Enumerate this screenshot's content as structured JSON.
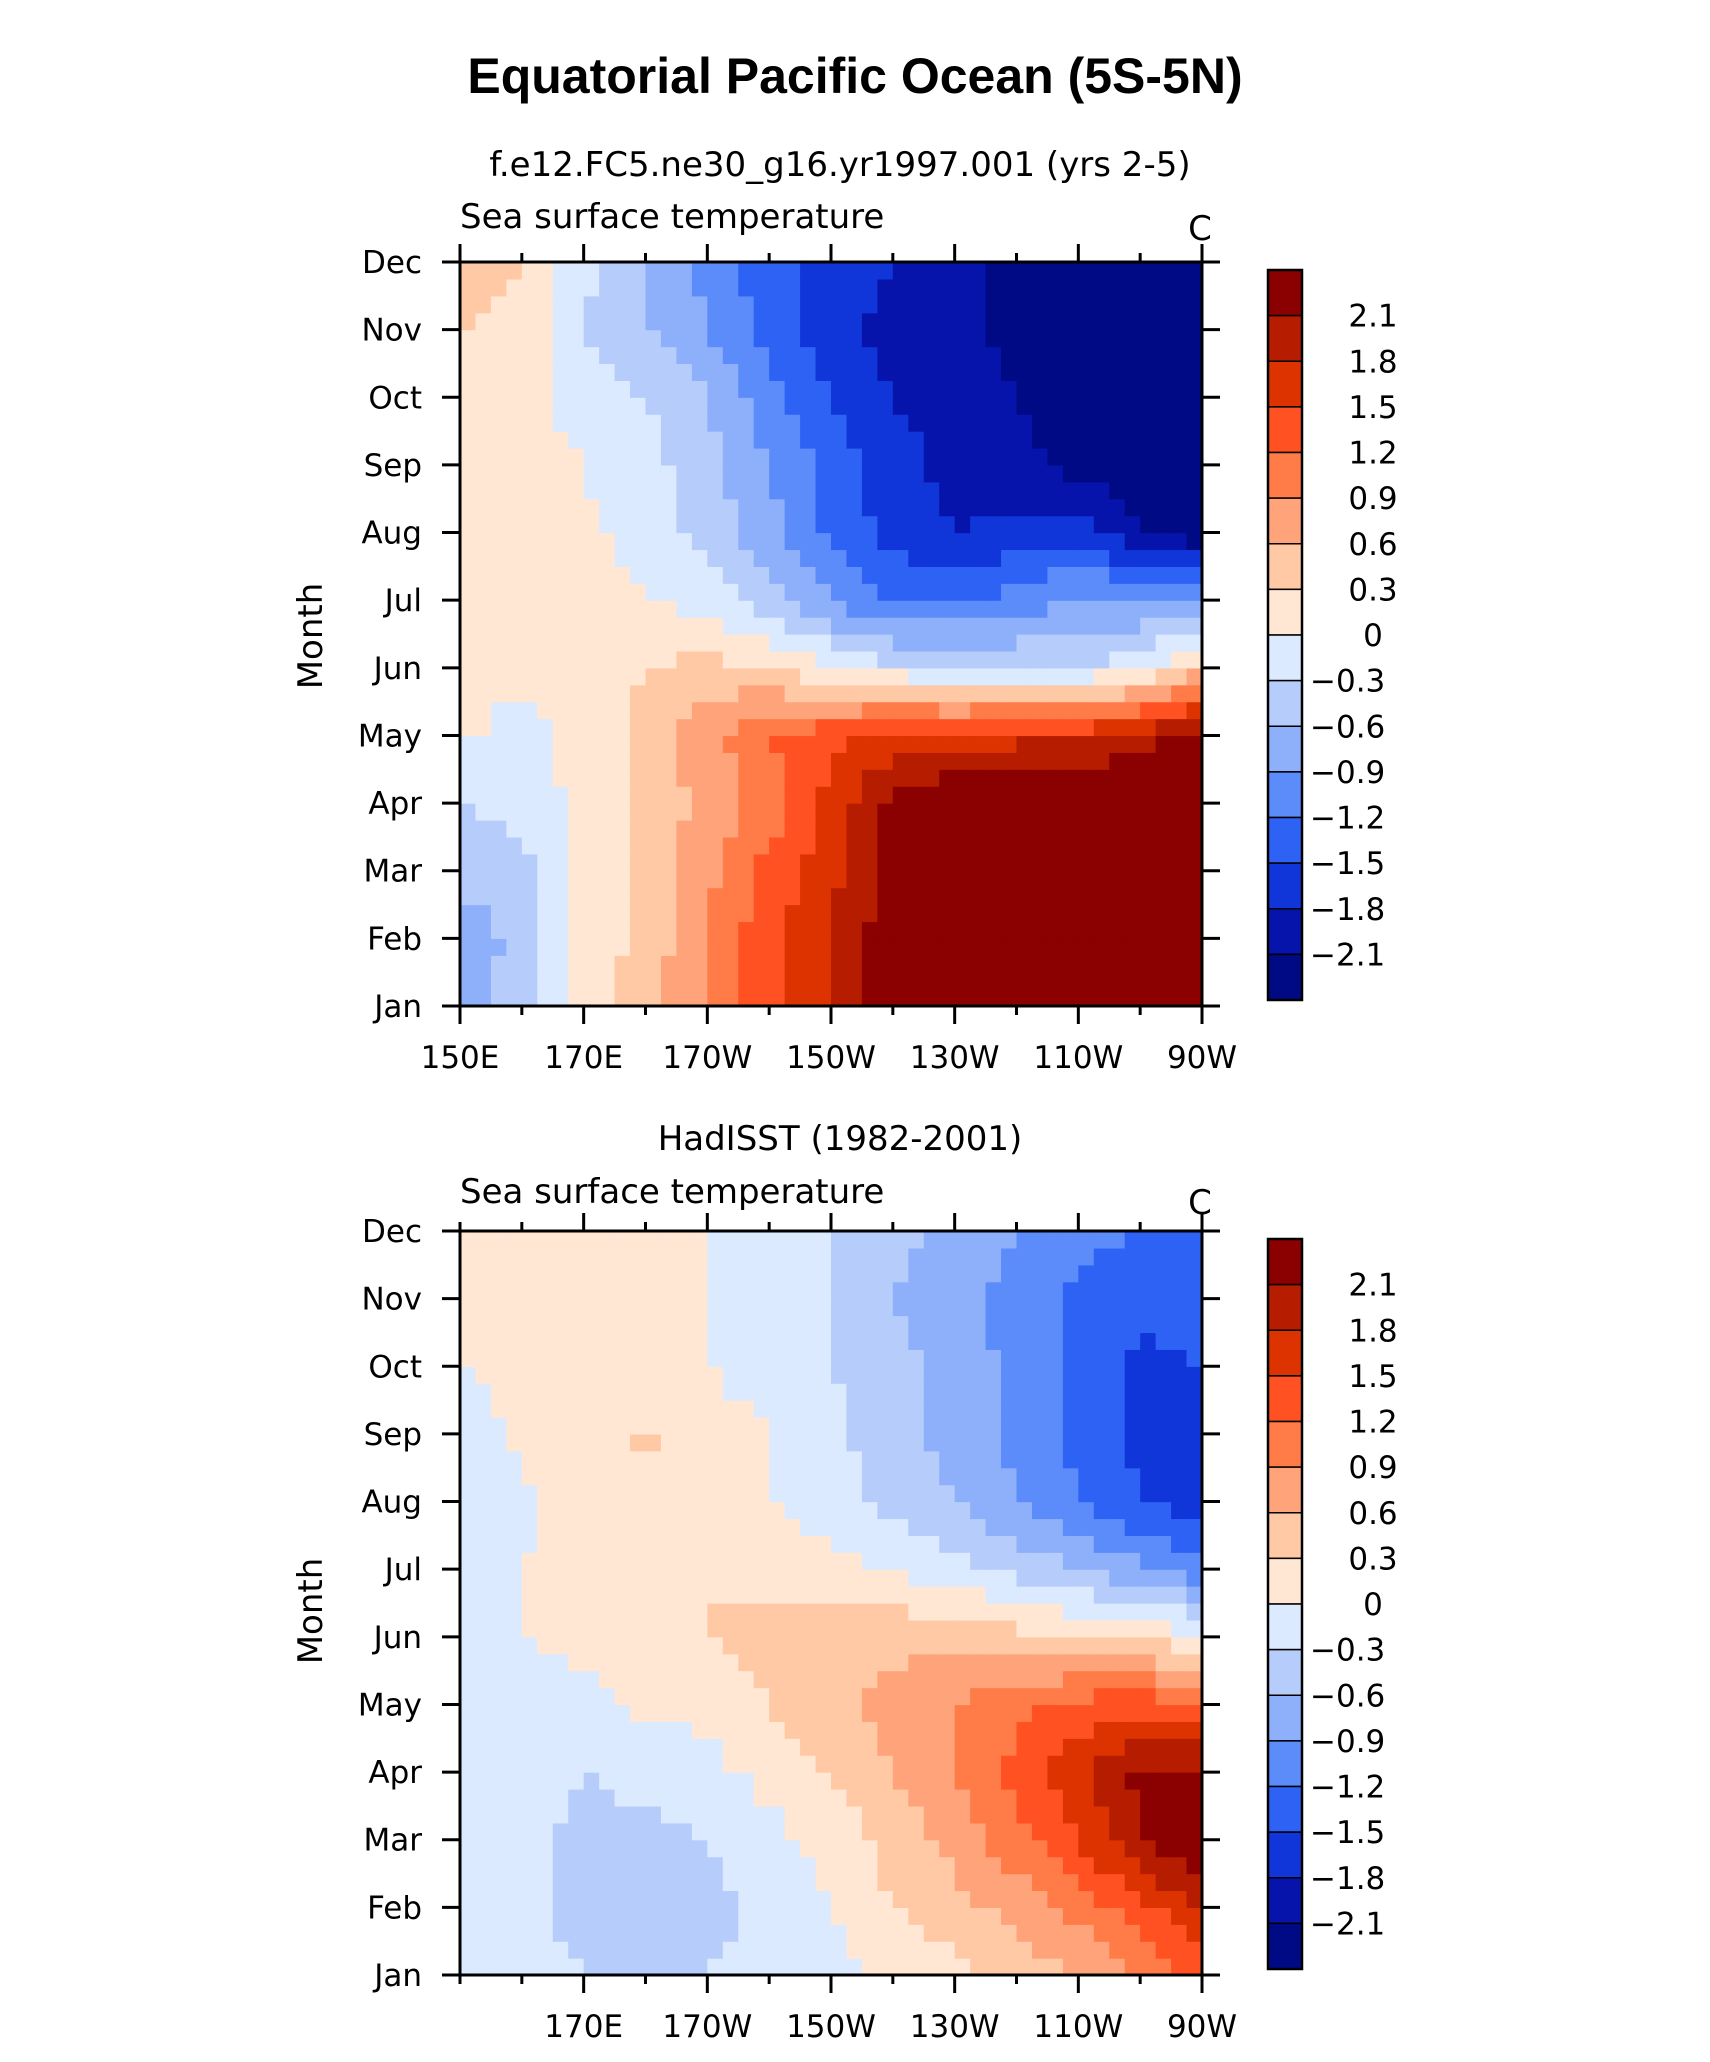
{
  "page_title": "Equatorial Pacific Ocean (5S-5N)",
  "colorbar": {
    "levels": [
      "2.1",
      "1.8",
      "1.5",
      "1.2",
      "0.9",
      "0.6",
      "0.3",
      "0",
      "-0.3",
      "-0.6",
      "-0.9",
      "-1.2",
      "-1.5",
      "-1.8",
      "-2.1"
    ],
    "colors": [
      "#8b0000",
      "#b51c00",
      "#dc3300",
      "#ff5122",
      "#ff7b47",
      "#ffa47a",
      "#ffc9a6",
      "#ffe7d4",
      "#dbeafe",
      "#b6ccfa",
      "#8eb0fb",
      "#5c8bfa",
      "#2e62f5",
      "#1036d9",
      "#0614ab",
      "#010a85"
    ]
  },
  "chart_data": [
    {
      "type": "heatmap",
      "title": "f.e12.FC5.ne30_g16.yr1997.001 (yrs 2-5)",
      "left_subtitle": "Sea surface temperature",
      "right_subtitle": "C",
      "ylabel": "Month",
      "xlabel": "",
      "x_ticks": [
        150,
        170,
        190,
        210,
        230,
        250,
        270
      ],
      "x_tick_labels": [
        "150E",
        "170E",
        "170W",
        "150W",
        "130W",
        "110W",
        "90W"
      ],
      "y_tick_labels": [
        "Jan",
        "Feb",
        "Mar",
        "Apr",
        "May",
        "Jun",
        "Jul",
        "Aug",
        "Sep",
        "Oct",
        "Nov",
        "Dec"
      ],
      "xlim": [
        150,
        270
      ],
      "ylim": [
        0,
        11
      ],
      "x": [
        150,
        160,
        170,
        180,
        190,
        200,
        210,
        220,
        230,
        240,
        250,
        260,
        270
      ],
      "z": [
        [
          -0.7,
          -0.5,
          0.1,
          0.5,
          0.9,
          1.4,
          1.8,
          2.3,
          2.5,
          2.5,
          2.6,
          2.6,
          2.6
        ],
        [
          -0.8,
          -0.5,
          0.1,
          0.4,
          0.9,
          1.4,
          1.8,
          2.3,
          2.5,
          2.5,
          2.6,
          2.6,
          2.6
        ],
        [
          -0.5,
          -0.4,
          0.1,
          0.4,
          0.8,
          1.3,
          1.7,
          2.3,
          2.5,
          2.5,
          2.6,
          2.6,
          2.6
        ],
        [
          -0.3,
          -0.2,
          0.1,
          0.4,
          0.7,
          1.0,
          1.6,
          2.2,
          2.5,
          2.5,
          2.6,
          2.6,
          2.6
        ],
        [
          0.05,
          -0.1,
          0.1,
          0.4,
          0.8,
          1.2,
          1.4,
          1.6,
          1.6,
          1.7,
          1.7,
          1.9,
          2.3
        ],
        [
          0.05,
          0.05,
          0.1,
          0.3,
          0.4,
          0.3,
          0.0,
          -0.2,
          -0.3,
          -0.3,
          -0.3,
          -0.1,
          0.5
        ],
        [
          0.1,
          0.1,
          0.1,
          0.0,
          -0.1,
          -0.5,
          -0.9,
          -1.3,
          -1.2,
          -1.1,
          -0.8,
          -0.9,
          -1.0
        ],
        [
          0.1,
          0.05,
          0.05,
          -0.1,
          -0.4,
          -0.8,
          -1.3,
          -1.6,
          -1.8,
          -1.7,
          -1.6,
          -2.1,
          -2.3
        ],
        [
          0.1,
          0.1,
          0.0,
          -0.2,
          -0.5,
          -0.9,
          -1.3,
          -1.7,
          -1.9,
          -2.0,
          -2.2,
          -2.3,
          -2.4
        ],
        [
          0.1,
          0.1,
          -0.1,
          -0.3,
          -0.6,
          -1.1,
          -1.5,
          -1.8,
          -1.9,
          -2.1,
          -2.3,
          -2.4,
          -2.4
        ],
        [
          0.3,
          0.2,
          -0.3,
          -0.6,
          -0.9,
          -1.3,
          -1.7,
          -1.9,
          -2.0,
          -2.2,
          -2.4,
          -2.5,
          -2.5
        ],
        [
          0.4,
          0.3,
          -0.2,
          -0.6,
          -1.0,
          -1.4,
          -1.6,
          -1.8,
          -2.0,
          -2.2,
          -2.3,
          -2.4,
          -2.4
        ]
      ]
    },
    {
      "type": "heatmap",
      "title": "HadISST (1982-2001)",
      "left_subtitle": "Sea surface temperature",
      "right_subtitle": "C",
      "ylabel": "Month",
      "xlabel": "",
      "x_ticks": [
        170,
        190,
        210,
        230,
        250,
        270
      ],
      "x_tick_labels": [
        "170E",
        "170W",
        "150W",
        "130W",
        "110W",
        "90W"
      ],
      "y_tick_labels": [
        "Jan",
        "Feb",
        "Mar",
        "Apr",
        "May",
        "Jun",
        "Jul",
        "Aug",
        "Sep",
        "Oct",
        "Nov",
        "Dec"
      ],
      "xlim": [
        150,
        270
      ],
      "ylim": [
        0,
        11
      ],
      "x": [
        150,
        160,
        170,
        180,
        190,
        200,
        210,
        220,
        230,
        240,
        250,
        260,
        270
      ],
      "z": [
        [
          -0.1,
          -0.2,
          -0.3,
          -0.3,
          -0.3,
          -0.2,
          -0.1,
          0.1,
          0.2,
          0.4,
          0.6,
          0.9,
          1.3
        ],
        [
          -0.1,
          -0.2,
          -0.4,
          -0.4,
          -0.4,
          -0.2,
          0.0,
          0.3,
          0.5,
          0.7,
          1.0,
          1.4,
          1.8
        ],
        [
          -0.1,
          -0.2,
          -0.4,
          -0.4,
          -0.3,
          -0.1,
          0.1,
          0.4,
          0.7,
          1.1,
          1.5,
          2.1,
          2.5
        ],
        [
          -0.1,
          -0.1,
          -0.3,
          -0.2,
          -0.1,
          0.1,
          0.3,
          0.6,
          0.9,
          1.3,
          1.7,
          2.2,
          2.2
        ],
        [
          -0.1,
          -0.1,
          -0.05,
          0.05,
          0.1,
          0.3,
          0.5,
          0.7,
          0.9,
          1.1,
          1.3,
          1.4,
          1.2
        ],
        [
          -0.05,
          0.0,
          0.05,
          0.1,
          0.3,
          0.4,
          0.5,
          0.5,
          0.5,
          0.4,
          0.3,
          0.2,
          0.1
        ],
        [
          -0.1,
          0.0,
          0.05,
          0.1,
          0.3,
          0.2,
          0.1,
          0.0,
          -0.2,
          -0.4,
          -0.6,
          -0.8,
          -1.1
        ],
        [
          -0.2,
          -0.05,
          0.1,
          0.2,
          0.1,
          0.0,
          -0.2,
          -0.4,
          -0.6,
          -0.9,
          -1.2,
          -1.5,
          -1.7
        ],
        [
          -0.1,
          0.05,
          0.1,
          0.35,
          0.1,
          0.0,
          -0.2,
          -0.5,
          -0.7,
          -1.0,
          -1.3,
          -1.6,
          -1.6
        ],
        [
          0.0,
          0.05,
          0.1,
          0.1,
          0.0,
          -0.1,
          -0.3,
          -0.5,
          -0.7,
          -1.0,
          -1.3,
          -1.6,
          -1.5
        ],
        [
          0.05,
          0.05,
          0.1,
          0.1,
          0.0,
          -0.1,
          -0.3,
          -0.6,
          -0.8,
          -1.0,
          -1.3,
          -1.4,
          -1.3
        ],
        [
          0.05,
          0.05,
          0.1,
          0.1,
          0.0,
          -0.1,
          -0.3,
          -0.5,
          -0.7,
          -0.9,
          -1.1,
          -1.2,
          -1.2
        ]
      ]
    }
  ]
}
